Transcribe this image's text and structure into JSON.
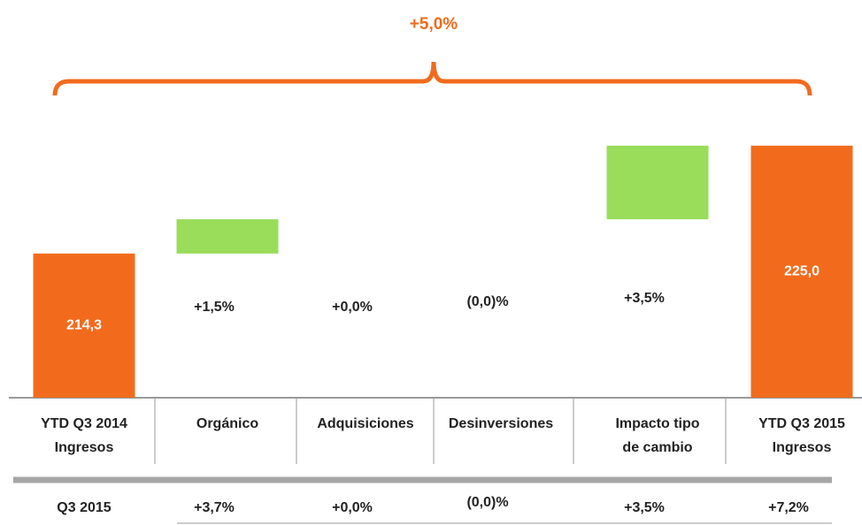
{
  "chart_data": {
    "type": "waterfall",
    "annotation": "+5,0%",
    "categories": [
      "YTD Q3 2014\nIngresos",
      "Orgánico",
      "Adquisiciones",
      "Desinversiones",
      "Impacto tipo\nde cambio",
      "YTD Q3 2015\nIngresos"
    ],
    "values": [
      214.3,
      3.4,
      0,
      0,
      7.3,
      225.0
    ],
    "value_labels": [
      "214,3",
      null,
      null,
      null,
      null,
      "225,0"
    ],
    "kinds": [
      "total",
      "delta",
      "delta",
      "delta",
      "delta",
      "total"
    ],
    "total_color": "#f26b1d",
    "delta_color": "#99dd5a",
    "change_labels": [
      null,
      "+1,5%",
      "+0,0%",
      "(0,0)%",
      "+3,5%",
      null
    ],
    "row_label": "Q3 2015",
    "row_values": [
      null,
      "+3,7%",
      "+0,0%",
      "(0,0)%",
      "+3,5%",
      "+7,2%"
    ],
    "ylim": [
      200,
      227
    ]
  }
}
